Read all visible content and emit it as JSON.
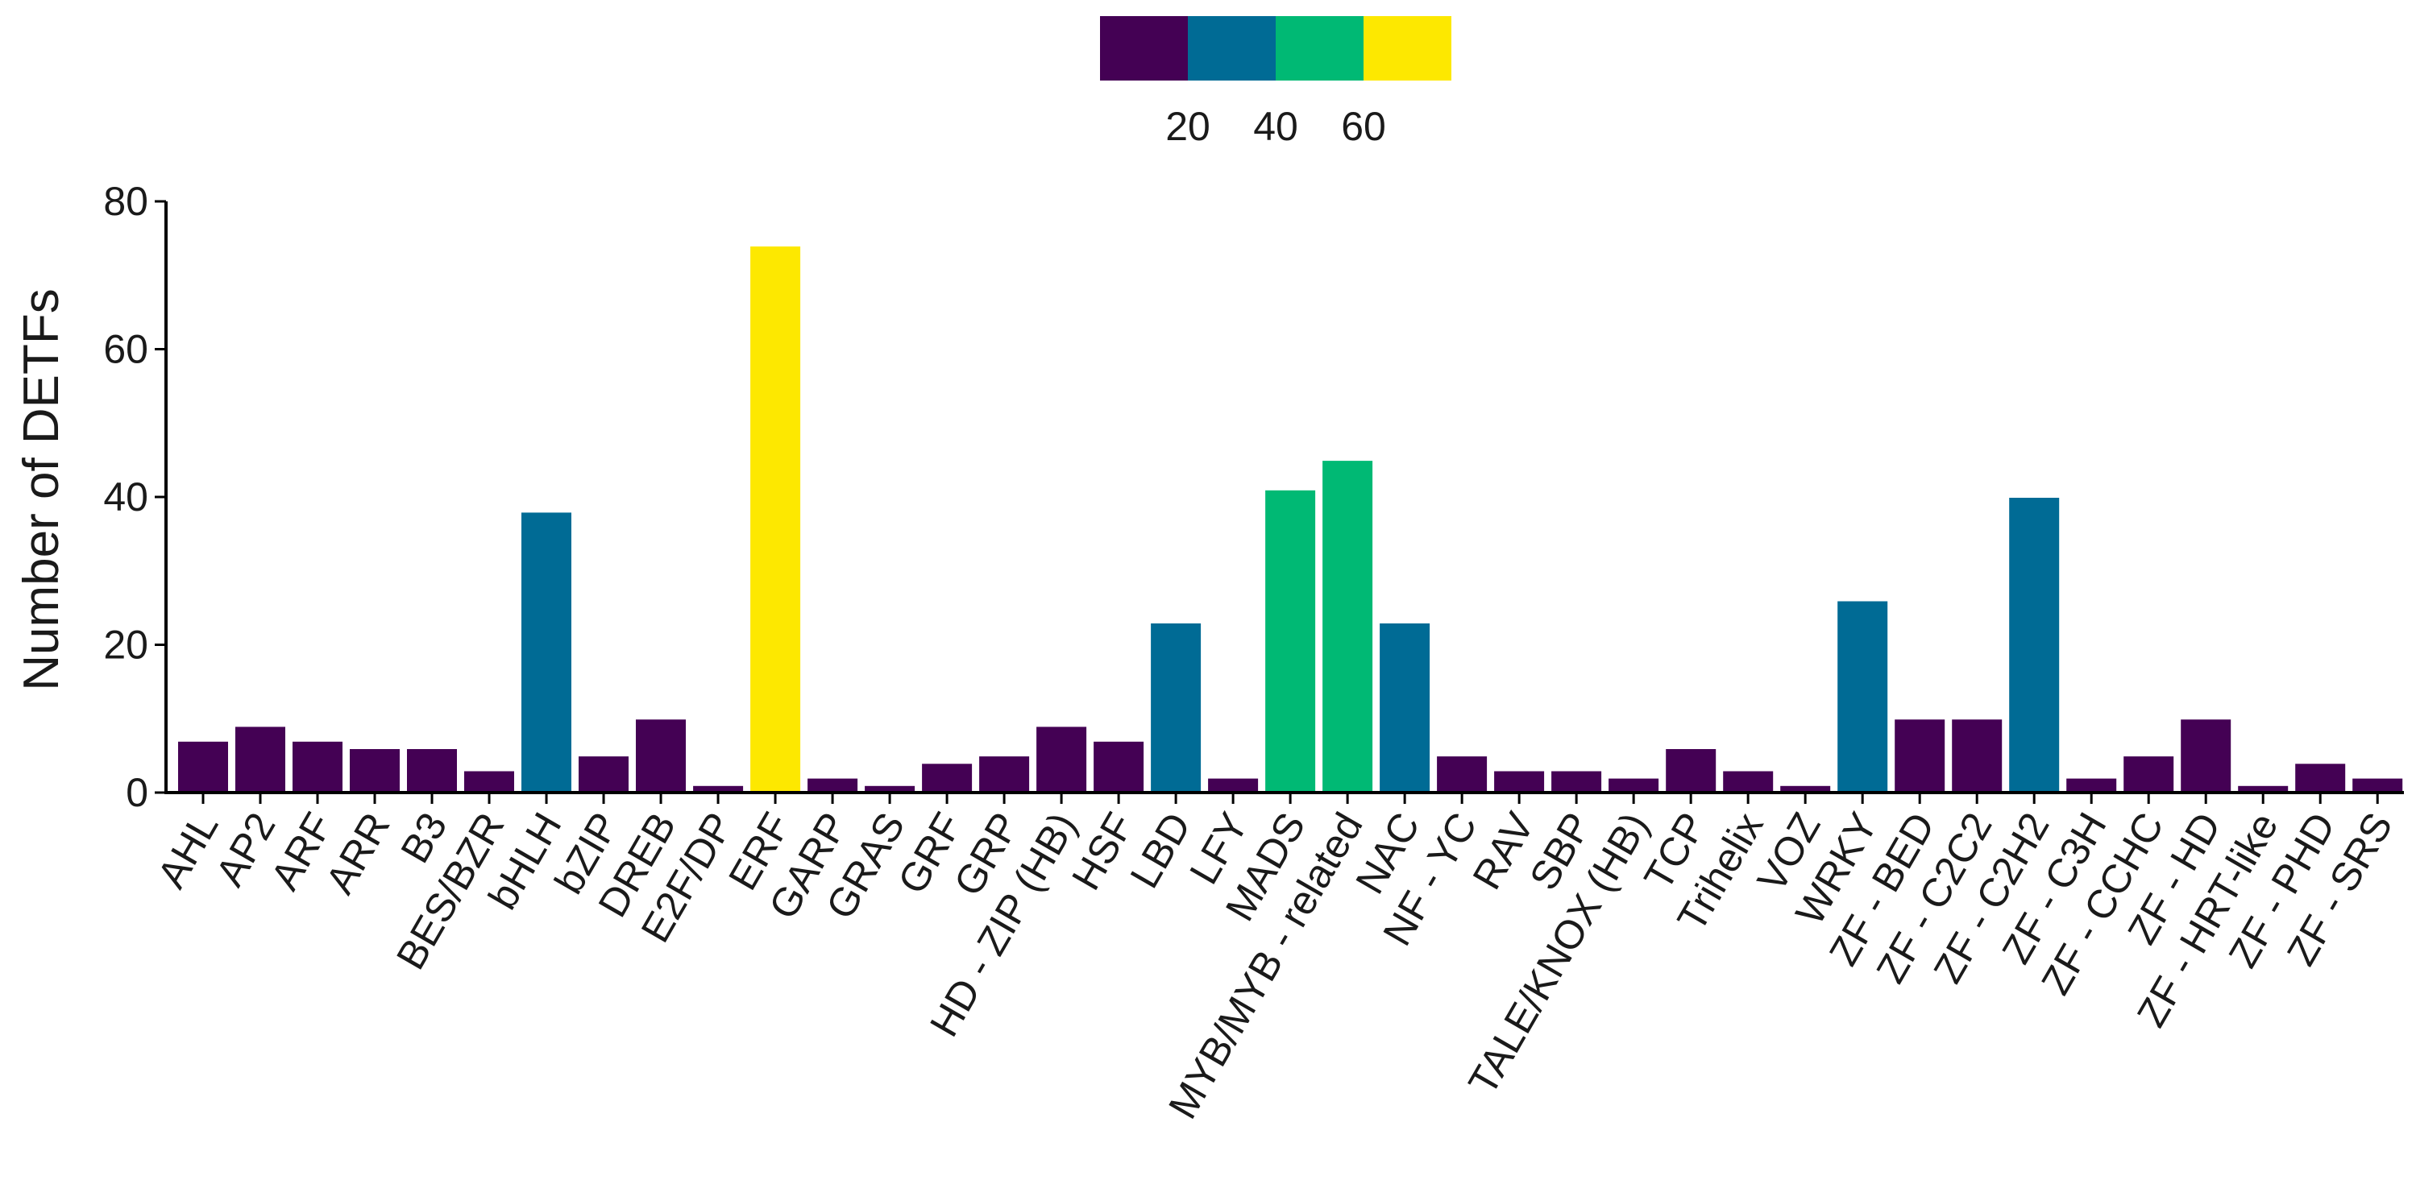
{
  "chart_data": {
    "type": "bar",
    "title": "",
    "xlabel": "",
    "ylabel": "Number of DETFs",
    "ylim": [
      0,
      80
    ],
    "yticks": [
      0,
      20,
      40,
      60,
      80
    ],
    "grid": false,
    "legend": {
      "placement": "top-center",
      "type": "colorbar",
      "colors": [
        "#440154",
        "#006b95",
        "#00b974",
        "#fde800"
      ],
      "tick_labels": [
        "20",
        "40",
        "60"
      ]
    },
    "categories": [
      "AHL",
      "AP2",
      "ARF",
      "ARR",
      "B3",
      "BES/BZR",
      "bHLH",
      "bZIP",
      "DREB",
      "E2F/DP",
      "ERF",
      "GARP",
      "GRAS",
      "GRF",
      "GRP",
      "HD - ZIP (HB)",
      "HSF",
      "LBD",
      "LFY",
      "MADS",
      "MYB/MYB - related",
      "NAC",
      "NF - YC",
      "RAV",
      "SBP",
      "TALE/KNOX (HB)",
      "TCP",
      "Trihelix",
      "VOZ",
      "WRKY",
      "ZF - BED",
      "ZF - C2C2",
      "ZF - C2H2",
      "ZF - C3H",
      "ZF - CCHC",
      "ZF - HD",
      "ZF - HRT-like",
      "ZF - PHD",
      "ZF - SRS"
    ],
    "values": [
      7,
      9,
      7,
      6,
      6,
      3,
      38,
      5,
      10,
      1,
      74,
      2,
      1,
      4,
      5,
      9,
      7,
      23,
      2,
      41,
      45,
      23,
      5,
      3,
      3,
      2,
      6,
      3,
      1,
      26,
      10,
      10,
      40,
      2,
      5,
      10,
      1,
      4,
      2
    ],
    "color_scale": {
      "type": "binned",
      "bins": [
        {
          "max": 20,
          "color": "#440154"
        },
        {
          "max": 40,
          "color": "#006b95"
        },
        {
          "max": 60,
          "color": "#00b974"
        },
        {
          "max": 80,
          "color": "#fde800"
        }
      ]
    }
  }
}
